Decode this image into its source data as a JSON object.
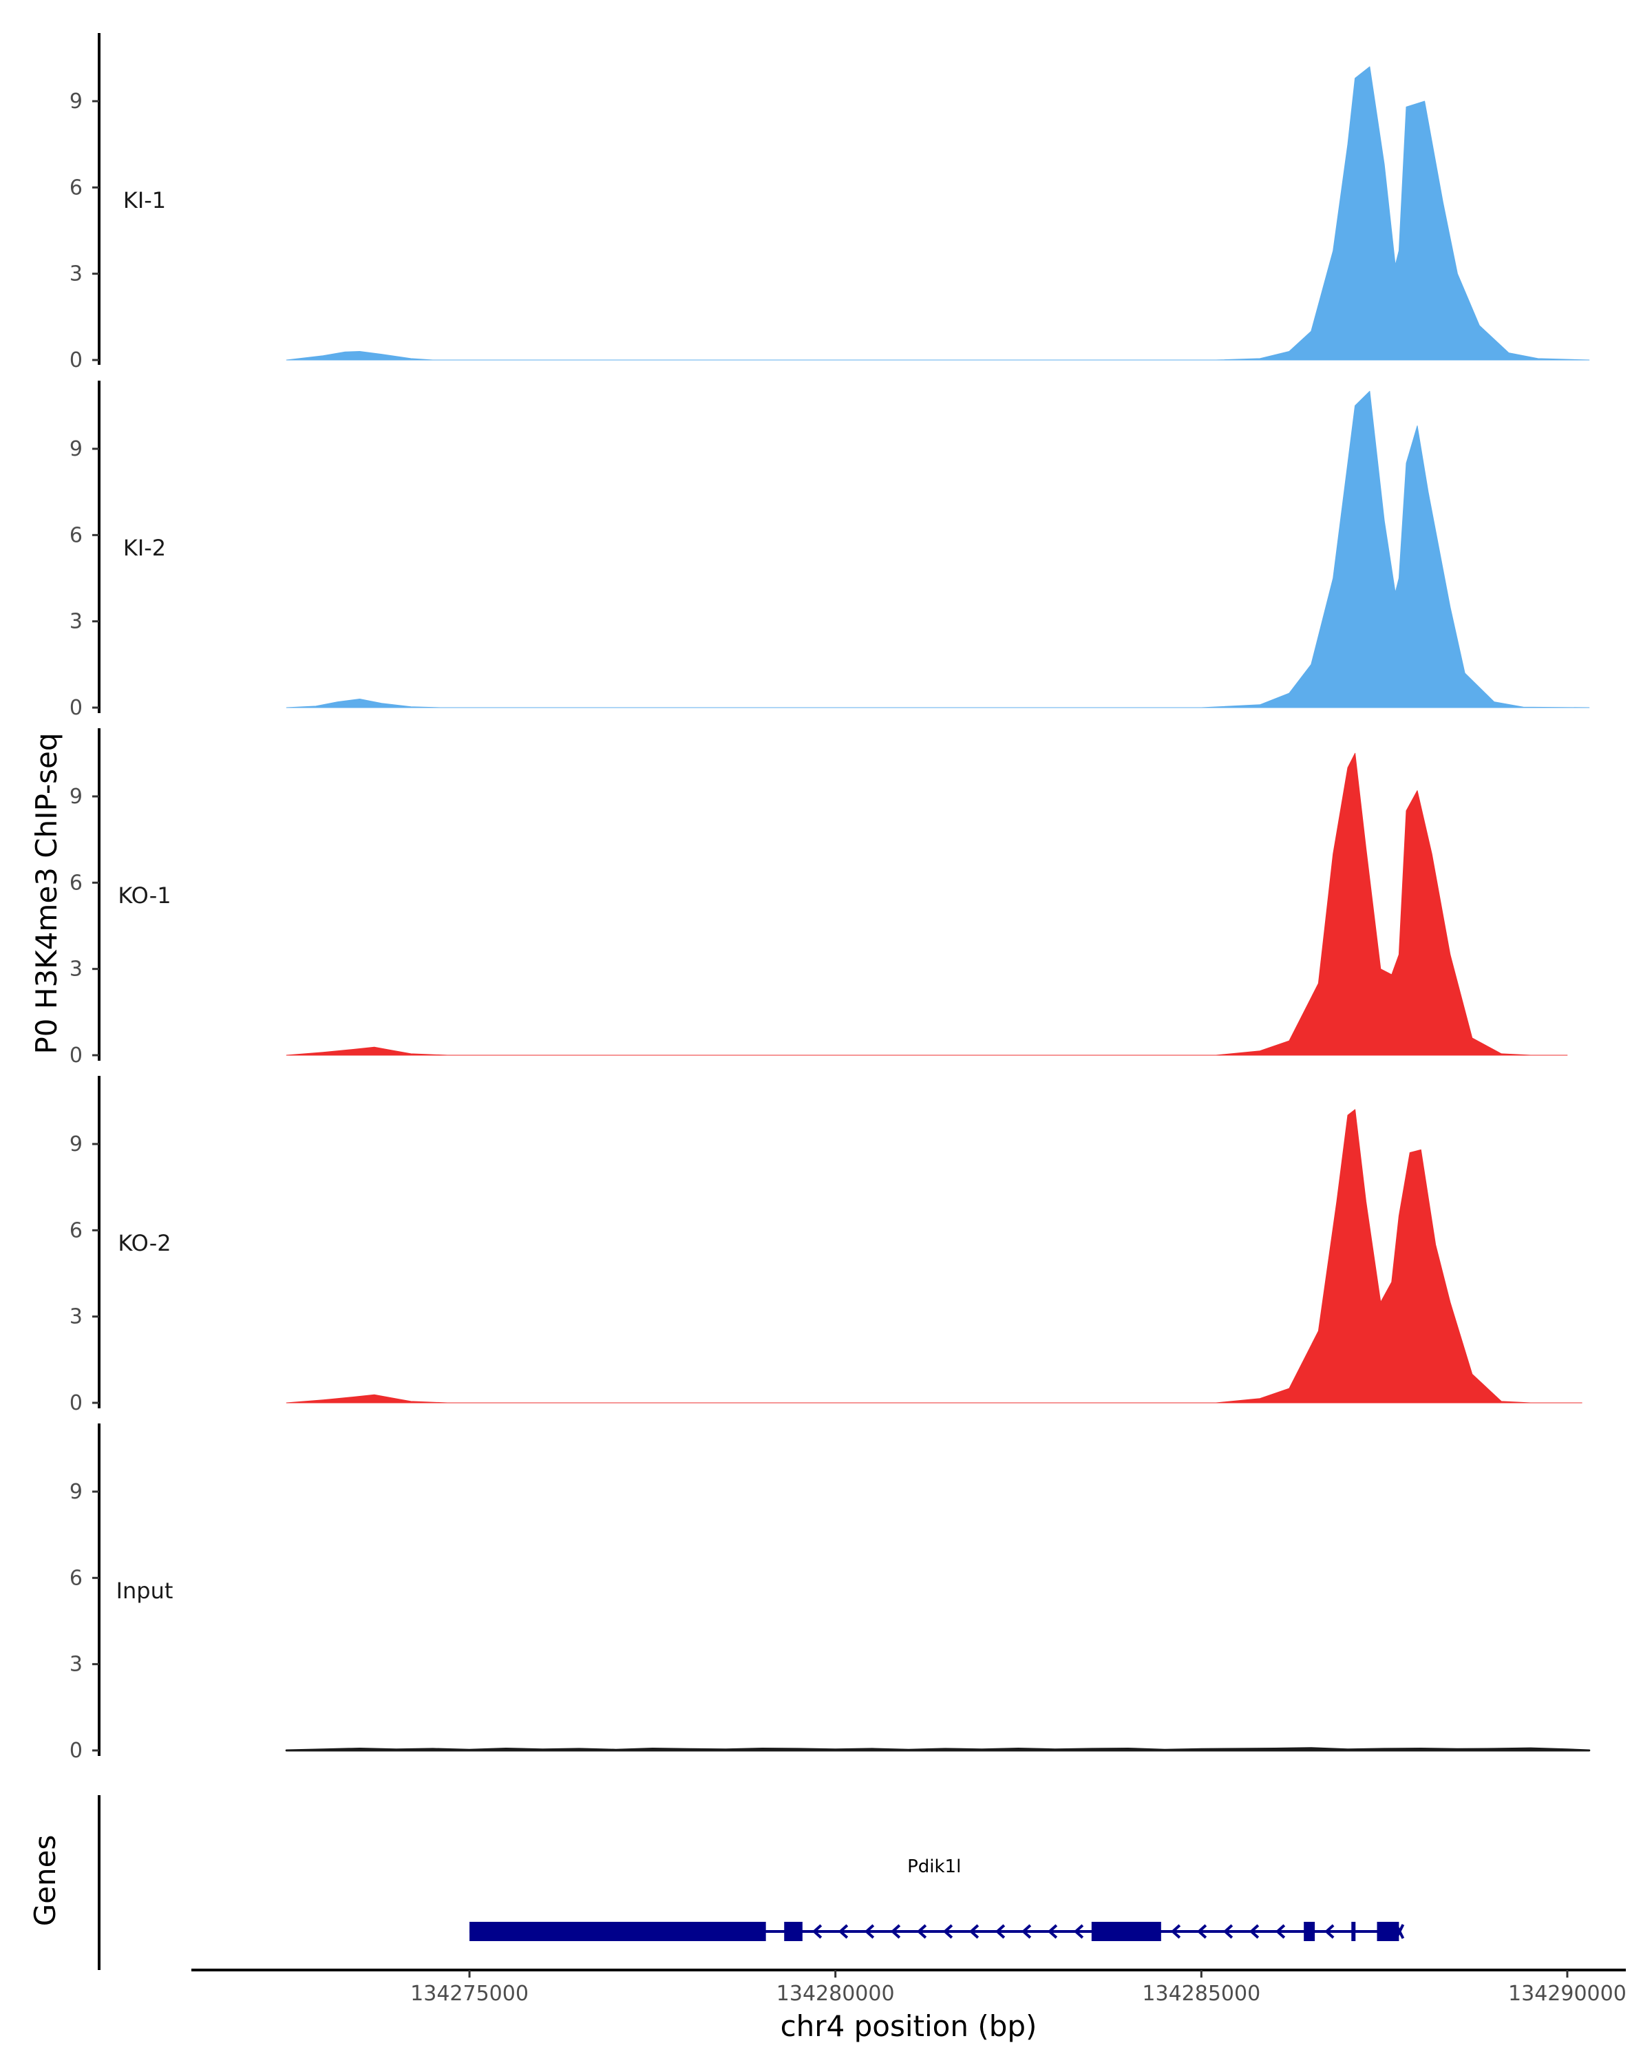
{
  "chart_data": {
    "type": "area",
    "ylabel": "P0 H3K4me3 ChIP-seq",
    "xlabel": "chr4 position (bp)",
    "xlim": [
      134271200,
      134290800
    ],
    "ylim": [
      0,
      11.3
    ],
    "y_ticks": [
      0,
      3,
      6,
      9
    ],
    "x_ticks": [
      134275000,
      134280000,
      134285000,
      134290000
    ],
    "x_tick_labels": [
      "134275000",
      "134280000",
      "134285000",
      "134290000"
    ],
    "grid": false,
    "tracks": [
      {
        "name": "KI-1",
        "color": "#5DADEC",
        "x": [
          134272500,
          134273000,
          134273300,
          134273500,
          134273800,
          134274200,
          134274500,
          134285200,
          134285800,
          134286200,
          134286500,
          134286800,
          134287000,
          134287100,
          134287300,
          134287500,
          134287650,
          134287700,
          134287800,
          134288050,
          134288300,
          134288500,
          134288800,
          134289200,
          134289600,
          134290300
        ],
        "y": [
          0,
          0.15,
          0.28,
          0.3,
          0.2,
          0.05,
          0,
          0,
          0.05,
          0.3,
          1.0,
          3.8,
          7.5,
          9.8,
          10.2,
          6.8,
          3.3,
          3.8,
          8.8,
          9.0,
          5.5,
          3.0,
          1.2,
          0.25,
          0.05,
          0
        ]
      },
      {
        "name": "KI-2",
        "color": "#5DADEC",
        "x": [
          134272500,
          134272900,
          134273200,
          134273500,
          134273800,
          134274200,
          134274600,
          134285000,
          134285800,
          134286200,
          134286500,
          134286800,
          134287000,
          134287100,
          134287300,
          134287500,
          134287650,
          134287700,
          134287800,
          134287950,
          134288100,
          134288400,
          134288600,
          134289000,
          134289400,
          134290300
        ],
        "y": [
          0,
          0.05,
          0.2,
          0.3,
          0.15,
          0.03,
          0,
          0,
          0.1,
          0.5,
          1.5,
          4.5,
          8.5,
          10.5,
          11.0,
          6.5,
          4.0,
          4.5,
          8.5,
          9.8,
          7.5,
          3.5,
          1.2,
          0.2,
          0.02,
          0
        ]
      },
      {
        "name": "KO-1",
        "color": "#EE2C2C",
        "x": [
          134272500,
          134273000,
          134273400,
          134273700,
          134274200,
          134274700,
          134285200,
          134285800,
          134286200,
          134286600,
          134286800,
          134287000,
          134287100,
          134287250,
          134287450,
          134287600,
          134287700,
          134287800,
          134287950,
          134288150,
          134288400,
          134288700,
          134289100,
          134289500,
          134290000
        ],
        "y": [
          0,
          0.1,
          0.2,
          0.28,
          0.05,
          0,
          0,
          0.15,
          0.5,
          2.5,
          7.0,
          10.0,
          10.5,
          7.2,
          3.0,
          2.8,
          3.5,
          8.5,
          9.2,
          7.0,
          3.5,
          0.6,
          0.05,
          0,
          0
        ]
      },
      {
        "name": "KO-2",
        "color": "#EE2C2C",
        "x": [
          134272500,
          134273000,
          134273400,
          134273700,
          134274200,
          134274700,
          134285200,
          134285800,
          134286200,
          134286600,
          134286850,
          134287000,
          134287100,
          134287250,
          134287450,
          134287600,
          134287700,
          134287850,
          134288000,
          134288200,
          134288400,
          134288700,
          134289100,
          134289500,
          134290200
        ],
        "y": [
          0,
          0.1,
          0.2,
          0.28,
          0.05,
          0,
          0,
          0.15,
          0.5,
          2.5,
          7.0,
          10.0,
          10.2,
          7.0,
          3.5,
          4.2,
          6.5,
          8.7,
          8.8,
          5.5,
          3.5,
          1.0,
          0.05,
          0,
          0
        ]
      },
      {
        "name": "Input",
        "color": "#1a1a1a",
        "x": [
          134272500,
          134273000,
          134273500,
          134274000,
          134274500,
          134275000,
          134275500,
          134276000,
          134276500,
          134277000,
          134277500,
          134278000,
          134278500,
          134279000,
          134279500,
          134280000,
          134280500,
          134281000,
          134281500,
          134282000,
          134282500,
          134283000,
          134283500,
          134284000,
          134284500,
          134285000,
          134285500,
          134286000,
          134286500,
          134287000,
          134287500,
          134288000,
          134288500,
          134289000,
          134289500,
          134290000,
          134290300
        ],
        "y": [
          0,
          0.03,
          0.06,
          0.03,
          0.05,
          0.02,
          0.06,
          0.03,
          0.05,
          0.02,
          0.06,
          0.04,
          0.03,
          0.06,
          0.05,
          0.03,
          0.05,
          0.02,
          0.05,
          0.03,
          0.06,
          0.03,
          0.05,
          0.06,
          0.02,
          0.04,
          0.05,
          0.06,
          0.08,
          0.03,
          0.05,
          0.06,
          0.04,
          0.05,
          0.07,
          0.03,
          0
        ]
      }
    ],
    "genes_label": "Genes",
    "gene": {
      "name": "Pdik1l",
      "strand": "-",
      "start": 134275000,
      "end": 134287700,
      "exons": [
        [
          134275000,
          134279050
        ],
        [
          134279300,
          134279550
        ],
        [
          134283500,
          134284450
        ],
        [
          134286400,
          134286550
        ],
        [
          134287050,
          134287100
        ],
        [
          134287400,
          134287700
        ]
      ]
    }
  }
}
